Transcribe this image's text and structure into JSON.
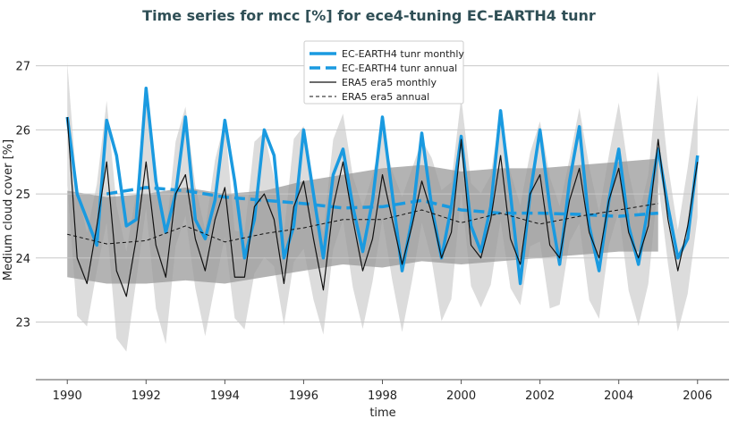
{
  "chart_data": {
    "type": "line",
    "title": "Time series for mcc [%] for ece4-tuning EC-EARTH4 tunr",
    "xlabel": "time",
    "ylabel": "Medium cloud cover [%]",
    "xlim": [
      1989.2,
      2006.8
    ],
    "ylim": [
      22.1,
      27.4
    ],
    "xticks": [
      1990,
      1992,
      1994,
      1996,
      1998,
      2000,
      2002,
      2004,
      2006
    ],
    "yticks": [
      23,
      24,
      25,
      26,
      27
    ],
    "grid": "horizontal",
    "legend_position": "top-center",
    "colors": {
      "model": "#1a9ae0",
      "obs": "#111111",
      "dark_band": "#9a9a9a",
      "light_band": "#dcdcdc",
      "title": "#2f4f56"
    },
    "series": [
      {
        "name": "EC-EARTH4 tunr monthly",
        "style": "solid-thick",
        "x_start": 1990,
        "step": 0.25,
        "values": [
          26.2,
          25.0,
          24.6,
          24.2,
          26.15,
          25.6,
          24.5,
          24.6,
          26.65,
          25.2,
          24.4,
          25.0,
          26.2,
          24.6,
          24.3,
          24.9,
          26.15,
          25.2,
          24.0,
          24.6,
          26.0,
          25.6,
          24.0,
          24.5,
          26.0,
          25.0,
          24.0,
          25.3,
          25.7,
          24.8,
          24.1,
          24.9,
          26.2,
          25.0,
          23.8,
          24.6,
          25.95,
          24.8,
          24.0,
          24.8,
          25.9,
          24.5,
          24.1,
          24.8,
          26.3,
          25.0,
          23.6,
          25.0,
          26.0,
          24.8,
          23.9,
          25.2,
          26.05,
          24.5,
          23.8,
          24.9,
          25.7,
          24.5,
          23.9,
          24.8,
          25.7,
          24.8,
          24.0,
          24.3,
          25.6
        ]
      },
      {
        "name": "EC-EARTH4 tunr annual",
        "style": "dashed-thick",
        "x": [
          1991,
          1992,
          1993,
          1994,
          1995,
          1996,
          1997,
          1998,
          1999,
          2000,
          2001,
          2002,
          2003,
          2004,
          2005
        ],
        "values": [
          25.0,
          25.1,
          25.05,
          24.95,
          24.9,
          24.85,
          24.78,
          24.8,
          24.9,
          24.75,
          24.7,
          24.7,
          24.68,
          24.65,
          24.7
        ]
      },
      {
        "name": "ERA5 era5 monthly",
        "style": "solid-thin",
        "x_start": 1990,
        "step": 0.25,
        "values": [
          26.2,
          24.0,
          23.6,
          24.5,
          25.5,
          23.8,
          23.4,
          24.3,
          25.5,
          24.2,
          23.7,
          25.0,
          25.3,
          24.3,
          23.8,
          24.6,
          25.1,
          23.7,
          23.7,
          24.8,
          25.0,
          24.6,
          23.6,
          24.8,
          25.2,
          24.3,
          23.5,
          24.8,
          25.5,
          24.6,
          23.8,
          24.3,
          25.3,
          24.6,
          23.9,
          24.5,
          25.2,
          24.7,
          24.0,
          24.4,
          25.85,
          24.2,
          24.0,
          24.6,
          25.6,
          24.3,
          23.9,
          25.0,
          25.3,
          24.2,
          24.0,
          24.9,
          25.4,
          24.4,
          24.0,
          24.9,
          25.4,
          24.4,
          24.0,
          24.5,
          25.85,
          24.6,
          23.8,
          24.5,
          25.5
        ]
      },
      {
        "name": "ERA5 era5 annual",
        "style": "dashed-thin",
        "x": [
          1990,
          1991,
          1992,
          1993,
          1994,
          1995,
          1996,
          1997,
          1998,
          1999,
          2000,
          2001,
          2002,
          2003,
          2004,
          2005
        ],
        "values": [
          24.37,
          24.22,
          24.27,
          24.5,
          24.25,
          24.38,
          24.47,
          24.6,
          24.6,
          24.75,
          24.55,
          24.7,
          24.53,
          24.65,
          24.75,
          24.85
        ]
      }
    ],
    "bands": [
      {
        "fill": "dark",
        "x": [
          1990,
          1991,
          1992,
          1993,
          1994,
          1995,
          1996,
          1997,
          1998,
          1999,
          2000,
          2001,
          2002,
          2003,
          2004,
          2005
        ],
        "upper": [
          25.05,
          24.95,
          25.0,
          25.1,
          25.0,
          25.05,
          25.2,
          25.3,
          25.4,
          25.45,
          25.35,
          25.4,
          25.4,
          25.45,
          25.5,
          25.55
        ],
        "lower": [
          23.7,
          23.6,
          23.6,
          23.65,
          23.6,
          23.7,
          23.8,
          23.9,
          23.85,
          23.95,
          23.9,
          23.95,
          24.0,
          24.05,
          24.1,
          24.1
        ]
      },
      {
        "fill": "light",
        "around": "ERA5 era5 monthly",
        "halfwidth": 0.85
      }
    ]
  }
}
